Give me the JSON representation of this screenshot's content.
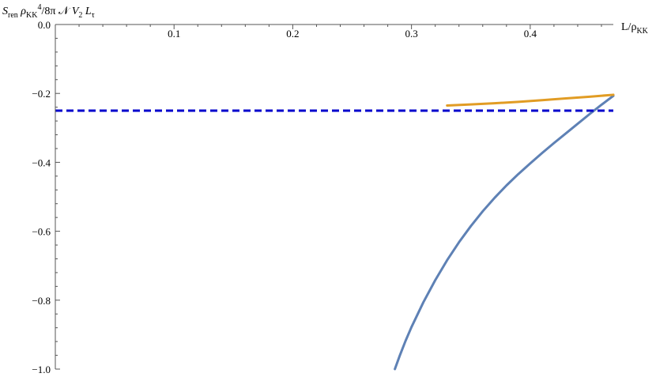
{
  "chart_data": {
    "type": "line",
    "title": "",
    "ylabel": {
      "parts": [
        {
          "text": "S",
          "style": "italic"
        },
        {
          "text": "ren",
          "style": "sub"
        },
        {
          "text": " ρ",
          "style": "italic"
        },
        {
          "text": "KK",
          "style": "sub"
        },
        {
          "text": "4",
          "style": "sup"
        },
        {
          "text": "/8π ",
          "style": "normal"
        },
        {
          "text": "𝒩",
          "style": "normal"
        },
        {
          "text": " V",
          "style": "italic"
        },
        {
          "text": "2",
          "style": "sub"
        },
        {
          "text": " L",
          "style": "italic"
        },
        {
          "text": "τ",
          "style": "sub"
        }
      ]
    },
    "xlabel": {
      "parts": [
        {
          "text": "L/ρ",
          "style": "normal"
        },
        {
          "text": "KK",
          "style": "sub"
        }
      ]
    },
    "xlim": [
      0,
      0.47
    ],
    "ylim": [
      -1.0,
      0.0
    ],
    "x_ticks": [
      0.1,
      0.2,
      0.3,
      0.4
    ],
    "x_tick_labels": [
      "0.1",
      "0.2",
      "0.3",
      "0.4"
    ],
    "y_ticks": [
      0.0,
      -0.2,
      -0.4,
      -0.6,
      -0.8,
      -1.0
    ],
    "y_tick_labels": [
      "0.0",
      "−0.2",
      "−0.4",
      "−0.6",
      "−0.8",
      "−1.0"
    ],
    "grid": false,
    "legend": "none",
    "series": [
      {
        "color": "#5E81B5",
        "style": "solid",
        "x": [
          0.286,
          0.29,
          0.295,
          0.3,
          0.31,
          0.32,
          0.33,
          0.34,
          0.35,
          0.36,
          0.37,
          0.38,
          0.39,
          0.4,
          0.41,
          0.42,
          0.43,
          0.44,
          0.45,
          0.46,
          0.47
        ],
        "y": [
          -1.0,
          -0.962,
          -0.918,
          -0.878,
          -0.806,
          -0.742,
          -0.684,
          -0.632,
          -0.585,
          -0.542,
          -0.503,
          -0.467,
          -0.434,
          -0.403,
          -0.373,
          -0.344,
          -0.316,
          -0.288,
          -0.26,
          -0.233,
          -0.207
        ]
      },
      {
        "color": "#E19C24",
        "style": "solid",
        "x": [
          0.33,
          0.35,
          0.37,
          0.39,
          0.41,
          0.43,
          0.45,
          0.47
        ],
        "y": [
          -0.235,
          -0.232,
          -0.2285,
          -0.2245,
          -0.2195,
          -0.2145,
          -0.2095,
          -0.204
        ]
      },
      {
        "color": "#0000CC",
        "style": "dashed",
        "x": [
          0.0,
          0.47
        ],
        "y": [
          -0.25,
          -0.25
        ]
      }
    ]
  }
}
